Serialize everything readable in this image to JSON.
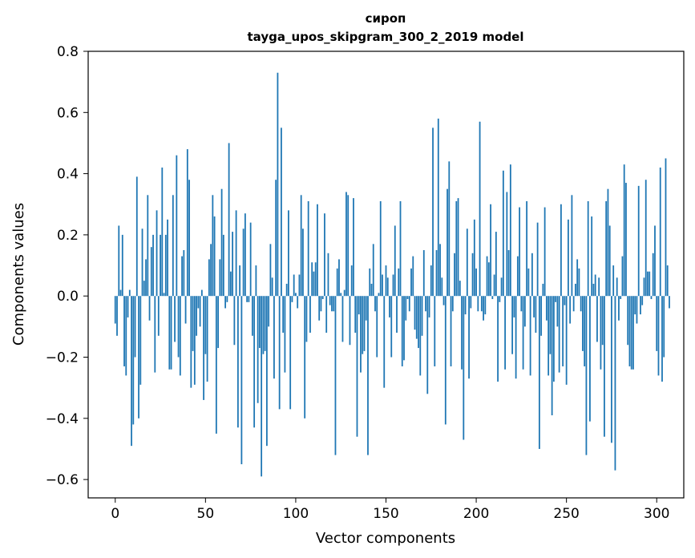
{
  "chart_data": {
    "type": "bar",
    "title": "сироп",
    "subtitle": "tayga_upos_skipgram_300_2_2019 model",
    "xlabel": "Vector components",
    "ylabel": "Components values",
    "xlim": [
      -15,
      315
    ],
    "ylim": [
      -0.66,
      0.8
    ],
    "xticks": [
      0,
      50,
      100,
      150,
      200,
      250,
      300
    ],
    "yticks": [
      -0.6,
      -0.4,
      -0.2,
      0.0,
      0.2,
      0.4,
      0.6,
      0.8
    ],
    "ytick_labels": [
      "−0.6",
      "−0.4",
      "−0.2",
      "0.0",
      "0.2",
      "0.4",
      "0.6",
      "0.8"
    ],
    "grid": false,
    "legend": "none",
    "colors": {
      "bar": "#1f77b4"
    },
    "values": [
      -0.09,
      -0.13,
      0.23,
      0.02,
      0.2,
      -0.23,
      -0.26,
      -0.07,
      0.02,
      -0.49,
      -0.42,
      -0.2,
      0.39,
      -0.4,
      -0.29,
      0.22,
      0.05,
      0.12,
      0.33,
      -0.08,
      0.16,
      0.2,
      -0.25,
      0.28,
      -0.13,
      0.2,
      0.42,
      0.01,
      0.2,
      0.25,
      -0.24,
      -0.24,
      0.33,
      -0.15,
      0.46,
      -0.2,
      -0.26,
      0.13,
      0.15,
      -0.09,
      0.48,
      0.38,
      -0.3,
      -0.18,
      -0.29,
      -0.13,
      -0.04,
      -0.1,
      0.02,
      -0.34,
      -0.19,
      -0.28,
      0.12,
      0.17,
      0.33,
      0.26,
      -0.45,
      -0.17,
      0.12,
      0.35,
      0.2,
      -0.04,
      -0.02,
      0.5,
      0.08,
      0.21,
      -0.16,
      0.28,
      -0.43,
      0.1,
      -0.55,
      0.22,
      0.27,
      -0.02,
      -0.02,
      0.24,
      -0.13,
      -0.43,
      0.1,
      -0.35,
      -0.17,
      -0.59,
      -0.19,
      -0.18,
      -0.49,
      -0.1,
      0.17,
      0.06,
      -0.27,
      0.38,
      0.73,
      -0.37,
      0.55,
      -0.12,
      -0.25,
      0.04,
      0.28,
      -0.37,
      -0.02,
      0.07,
      0.01,
      -0.04,
      0.07,
      0.33,
      0.22,
      -0.4,
      -0.15,
      0.31,
      -0.12,
      0.11,
      0.08,
      0.11,
      0.3,
      -0.08,
      -0.05,
      -0.01,
      0.27,
      -0.12,
      0.14,
      -0.03,
      -0.05,
      -0.05,
      -0.52,
      0.09,
      0.12,
      0.01,
      -0.15,
      0.02,
      0.34,
      0.33,
      -0.16,
      0.1,
      0.32,
      -0.12,
      -0.46,
      -0.06,
      -0.25,
      -0.19,
      -0.18,
      -0.08,
      -0.52,
      0.09,
      0.04,
      0.17,
      -0.05,
      -0.2,
      0.01,
      0.31,
      0.07,
      -0.3,
      0.1,
      0.06,
      -0.07,
      -0.2,
      0.07,
      0.23,
      -0.12,
      0.09,
      0.31,
      -0.23,
      -0.21,
      -0.08,
      -0.01,
      -0.05,
      0.09,
      0.13,
      -0.11,
      -0.14,
      -0.17,
      -0.26,
      -0.13,
      0.15,
      -0.05,
      -0.32,
      -0.07,
      0.1,
      0.55,
      -0.23,
      0.15,
      0.58,
      0.17,
      0.06,
      -0.03,
      -0.42,
      0.35,
      0.44,
      -0.23,
      -0.05,
      0.14,
      0.31,
      0.32,
      0.05,
      -0.24,
      -0.47,
      -0.06,
      0.22,
      -0.27,
      -0.04,
      0.14,
      0.25,
      0.09,
      -0.05,
      0.57,
      -0.05,
      -0.08,
      -0.06,
      0.13,
      0.11,
      0.3,
      -0.01,
      0.07,
      0.21,
      -0.28,
      -0.02,
      0.06,
      0.41,
      -0.24,
      0.34,
      0.15,
      0.43,
      -0.19,
      -0.07,
      -0.27,
      0.13,
      0.29,
      -0.05,
      -0.24,
      -0.1,
      0.31,
      0.09,
      -0.26,
      0.14,
      -0.07,
      -0.12,
      0.24,
      -0.5,
      -0.13,
      0.04,
      0.29,
      -0.08,
      -0.26,
      -0.19,
      -0.39,
      -0.28,
      -0.02,
      -0.1,
      -0.25,
      0.3,
      -0.23,
      -0.03,
      -0.29,
      0.25,
      -0.09,
      0.33,
      -0.05,
      0.04,
      0.12,
      0.09,
      -0.05,
      -0.18,
      -0.23,
      -0.52,
      0.31,
      -0.41,
      0.26,
      0.04,
      0.07,
      -0.15,
      0.06,
      -0.24,
      -0.16,
      -0.46,
      0.31,
      0.35,
      0.23,
      -0.48,
      0.1,
      -0.57,
      0.06,
      -0.08,
      -0.01,
      0.13,
      0.43,
      0.37,
      -0.16,
      -0.23,
      -0.24,
      -0.24,
      -0.06,
      -0.09,
      0.36,
      -0.06,
      -0.03,
      0.06,
      0.38,
      0.08,
      0.08,
      -0.01,
      0.14,
      0.23,
      -0.18,
      -0.26,
      0.42,
      -0.28,
      -0.2,
      0.45,
      0.1,
      -0.04
    ]
  }
}
